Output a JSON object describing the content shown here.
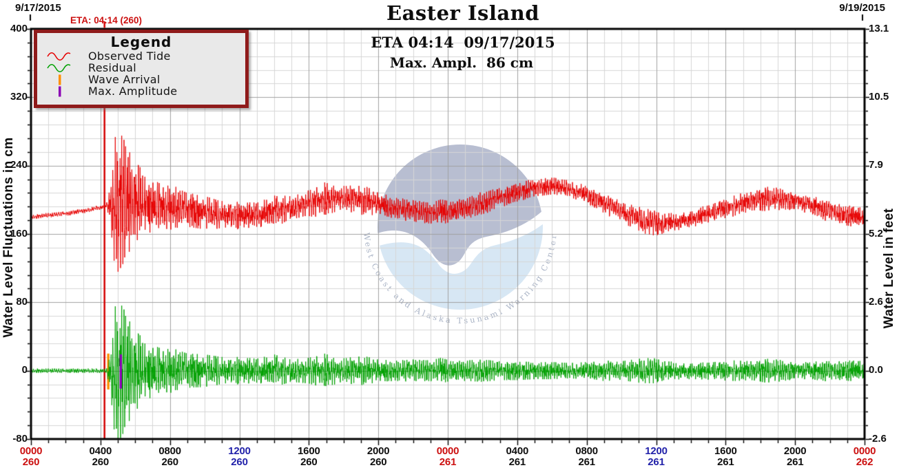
{
  "header": {
    "title": "Easter Island",
    "eta_line": "ETA 04:14  09/17/2015",
    "max_ampl_line": "Max. Ampl.  86 cm",
    "date_left": "9/17/2015",
    "date_right": "9/19/2015",
    "eta_marker_label": "ETA: 04:14 (260)"
  },
  "axes": {
    "left_title": "Water Level Fluctuations in cm",
    "right_title": "Water Level in feet",
    "cm_ticks": [
      400,
      320,
      240,
      160,
      80,
      0,
      -80
    ],
    "feet_ticks": [
      "13.1",
      "10.5",
      "7.9",
      "5.2",
      "2.6",
      "0.0",
      "-2.6"
    ],
    "x_ticks": [
      {
        "t": 0,
        "time": "0000",
        "day": "260",
        "color": "red"
      },
      {
        "t": 4,
        "time": "0400",
        "day": "260",
        "color": "black"
      },
      {
        "t": 8,
        "time": "0800",
        "day": "260",
        "color": "black"
      },
      {
        "t": 12,
        "time": "1200",
        "day": "260",
        "color": "blue"
      },
      {
        "t": 16,
        "time": "1600",
        "day": "260",
        "color": "black"
      },
      {
        "t": 20,
        "time": "2000",
        "day": "260",
        "color": "black"
      },
      {
        "t": 24,
        "time": "0000",
        "day": "261",
        "color": "red"
      },
      {
        "t": 28,
        "time": "0400",
        "day": "261",
        "color": "black"
      },
      {
        "t": 32,
        "time": "0800",
        "day": "261",
        "color": "black"
      },
      {
        "t": 36,
        "time": "1200",
        "day": "261",
        "color": "blue"
      },
      {
        "t": 40,
        "time": "1600",
        "day": "261",
        "color": "black"
      },
      {
        "t": 44,
        "time": "2000",
        "day": "261",
        "color": "black"
      },
      {
        "t": 48,
        "time": "0000",
        "day": "262",
        "color": "red"
      }
    ]
  },
  "legend": {
    "title": "Legend",
    "items": [
      {
        "label": "Observed Tide",
        "swatch": "red-wave"
      },
      {
        "label": "Residual",
        "swatch": "green-wave"
      },
      {
        "label": "Wave Arrival",
        "swatch": "orange-bar"
      },
      {
        "label": "Max. Amplitude",
        "swatch": "purple-bar"
      }
    ]
  },
  "watermark": {
    "arc_text": "West Coast and Alaska Tsunami Warning Center"
  },
  "colors": {
    "red_series": "#e60000",
    "green_series": "#00a000",
    "eta_line": "#d40000",
    "wave_arrival": "#ff9000",
    "max_amplitude": "#8a00b4",
    "label_red": "#cc1111",
    "label_blue": "#2222aa",
    "label_black": "#101010",
    "grid_minor": "#d6d6d6",
    "grid_major": "#a0a0a0",
    "axis_frame": "#000000",
    "legend_border": "#8f1b1b",
    "legend_bg": "#e9e9e9",
    "watermark_top": "#a9b0c8",
    "watermark_bottom": "#cfe2f2",
    "watermark_text": "#8593ad"
  },
  "chart_data": {
    "type": "line",
    "title": "Easter Island",
    "x_unit": "hours from 00:00 9/17/2015 (day 260) to 00:00 9/19/2015 (day 262)",
    "x_range_hours": [
      0,
      48
    ],
    "ylabel_left": "Water Level Fluctuations in cm",
    "ylabel_right": "Water Level in feet",
    "y_range_cm": [
      -80,
      400
    ],
    "grid": {
      "minor_cm": 16,
      "major_cm": 80,
      "minor_hours": 1,
      "major_hours": 4
    },
    "series": [
      {
        "name": "Observed Tide",
        "color_key": "red_series",
        "description": "smooth tide level in cm vs hours; high-frequency tsunami oscillation superimposed after arrival",
        "tide_points_t_cm": [
          [
            0,
            180
          ],
          [
            1,
            182
          ],
          [
            2,
            184
          ],
          [
            3,
            187
          ],
          [
            4,
            191
          ],
          [
            4.6,
            196
          ],
          [
            5,
            199
          ],
          [
            6,
            197.5
          ],
          [
            7,
            193.5
          ],
          [
            8,
            191
          ],
          [
            9,
            188
          ],
          [
            10,
            185
          ],
          [
            11,
            182.5
          ],
          [
            12,
            181.5
          ],
          [
            13,
            182.5
          ],
          [
            14,
            186
          ],
          [
            15,
            191
          ],
          [
            16,
            196
          ],
          [
            17,
            200.5
          ],
          [
            17.7,
            202
          ],
          [
            18.5,
            201
          ],
          [
            19.2,
            199
          ],
          [
            20,
            195.5
          ],
          [
            21,
            190.5
          ],
          [
            22,
            186.5
          ],
          [
            23,
            184.5
          ],
          [
            24,
            186
          ],
          [
            25,
            190
          ],
          [
            26,
            196
          ],
          [
            27,
            202.5
          ],
          [
            28,
            209
          ],
          [
            29,
            214
          ],
          [
            30,
            216
          ],
          [
            30.8,
            214
          ],
          [
            31.5,
            209.5
          ],
          [
            32.5,
            201
          ],
          [
            33.5,
            191.5
          ],
          [
            34.5,
            181.5
          ],
          [
            35.5,
            174.5
          ],
          [
            36.2,
            172
          ],
          [
            37,
            174
          ],
          [
            38,
            178
          ],
          [
            39,
            184
          ],
          [
            40,
            190
          ],
          [
            41,
            196
          ],
          [
            41.9,
            200
          ],
          [
            42.6,
            201.5
          ],
          [
            43.3,
            200.5
          ],
          [
            44,
            198
          ],
          [
            45,
            193
          ],
          [
            46,
            187
          ],
          [
            47,
            181.5
          ],
          [
            47.6,
            179.5
          ],
          [
            48,
            180.5
          ]
        ]
      },
      {
        "name": "Residual",
        "color_key": "green_series",
        "mean_cm": 0,
        "description": "residual (observed minus predicted tide); envelope half-amplitude in cm vs hours",
        "noise_envelope_t_cm": [
          [
            0,
            2.5
          ],
          [
            4.35,
            2.5
          ],
          [
            4.45,
            12
          ],
          [
            4.6,
            40
          ],
          [
            4.78,
            68
          ],
          [
            4.95,
            85
          ],
          [
            5.15,
            79
          ],
          [
            5.4,
            70
          ],
          [
            5.7,
            57
          ],
          [
            6,
            47
          ],
          [
            6.5,
            37
          ],
          [
            7,
            30
          ],
          [
            7.6,
            25
          ],
          [
            8.2,
            26
          ],
          [
            9,
            20
          ],
          [
            10,
            19
          ],
          [
            11,
            16
          ],
          [
            12,
            16
          ],
          [
            13,
            14
          ],
          [
            14,
            19
          ],
          [
            15,
            13
          ],
          [
            16,
            15
          ],
          [
            16.9,
            20
          ],
          [
            17.8,
            14
          ],
          [
            18.6,
            16
          ],
          [
            19.2,
            17
          ],
          [
            20,
            13
          ],
          [
            21,
            12
          ],
          [
            22,
            13
          ],
          [
            23,
            12
          ],
          [
            23.6,
            15
          ],
          [
            24.3,
            11
          ],
          [
            25,
            12
          ],
          [
            26,
            13
          ],
          [
            27,
            11
          ],
          [
            28,
            11
          ],
          [
            29,
            10
          ],
          [
            30,
            10
          ],
          [
            31,
            9
          ],
          [
            32,
            10
          ],
          [
            33,
            12
          ],
          [
            34,
            11
          ],
          [
            35,
            14
          ],
          [
            35.8,
            15
          ],
          [
            36.5,
            11
          ],
          [
            37.5,
            10
          ],
          [
            38.5,
            10
          ],
          [
            39.5,
            11
          ],
          [
            40.5,
            12
          ],
          [
            41.5,
            11
          ],
          [
            42.3,
            14
          ],
          [
            43,
            13
          ],
          [
            44,
            10
          ],
          [
            45,
            10
          ],
          [
            45.8,
            13
          ],
          [
            46.5,
            11
          ],
          [
            47.2,
            12
          ],
          [
            48,
            11
          ]
        ]
      }
    ],
    "events": {
      "eta": {
        "t_hours": 4.233,
        "time": "04:14",
        "day": 260,
        "label": "ETA: 04:14 (260)"
      },
      "wave_arrival": {
        "t_hours": 4.45,
        "bar_cm": [
          -22,
          20
        ]
      },
      "max_amplitude": {
        "t_hours": 5.17,
        "bar_cm": [
          -21,
          19
        ],
        "value_cm": 86
      }
    }
  }
}
